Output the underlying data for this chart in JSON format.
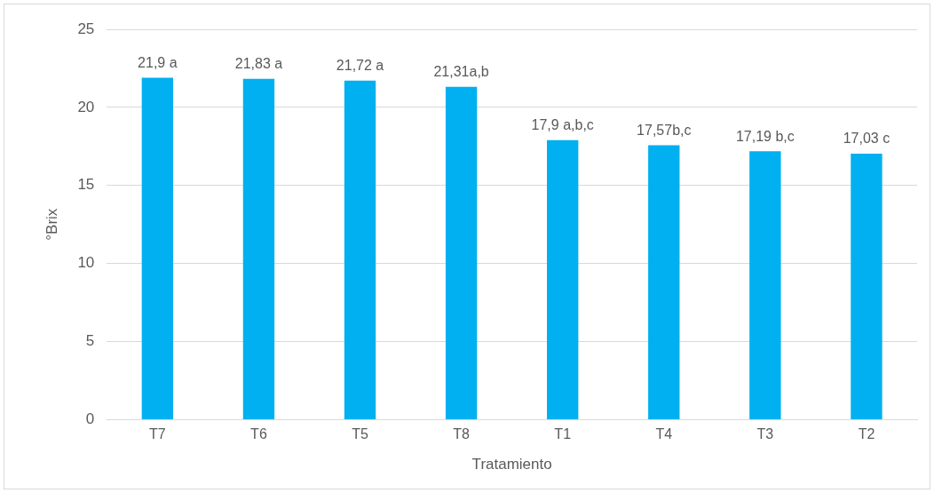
{
  "chart_data": {
    "type": "bar",
    "xlabel": "Tratamiento",
    "ylabel": "°Brix",
    "categories": [
      "T7",
      "T6",
      "T5",
      "T8",
      "T1",
      "T4",
      "T3",
      "T2"
    ],
    "values": [
      21.9,
      21.83,
      21.72,
      21.31,
      17.9,
      17.57,
      17.19,
      17.03
    ],
    "value_labels": [
      "21,9 a",
      "21,83 a",
      "21,72 a",
      "21,31a,b",
      "17,9 a,b,c",
      "17,57b,c",
      "17,19 b,c",
      "17,03 c"
    ],
    "color": "#00b0f0",
    "ylim": [
      0,
      25
    ],
    "yticks": [
      0,
      5,
      10,
      15,
      20,
      25
    ],
    "grid": "y",
    "legend": false
  }
}
